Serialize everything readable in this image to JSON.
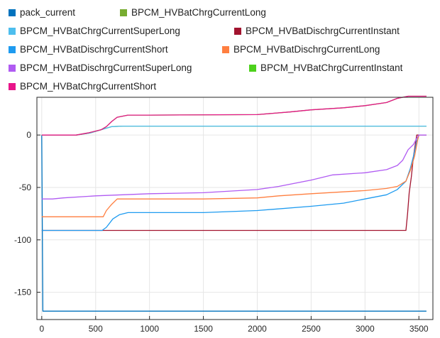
{
  "chart_data": {
    "type": "line",
    "title": "",
    "xlabel": "",
    "ylabel": "",
    "xlim": [
      -45,
      3630
    ],
    "ylim": [
      -176,
      36
    ],
    "grid": true,
    "legend_placement": "top",
    "x_ticks": [
      0,
      500,
      1000,
      1500,
      2000,
      2500,
      3000,
      3500
    ],
    "y_ticks": [
      0,
      -50,
      -100,
      -150
    ],
    "series": [
      {
        "name": "pack_current",
        "color": "#0072BD",
        "points": [
          [
            0,
            0
          ],
          [
            10,
            -168
          ],
          [
            3570,
            -168
          ]
        ]
      },
      {
        "name": "BPCM_HVBatChrgCurrentLong",
        "color": "#77AC30",
        "points": [
          [
            0,
            0
          ],
          [
            320,
            0
          ],
          [
            450,
            2
          ],
          [
            550,
            5
          ],
          [
            650,
            8
          ],
          [
            750,
            8.5
          ],
          [
            3570,
            8.5
          ]
        ]
      },
      {
        "name": "BPCM_HVBatChrgCurrentSuperLong",
        "color": "#4DBEEE",
        "points": [
          [
            0,
            0
          ],
          [
            320,
            0
          ],
          [
            450,
            2
          ],
          [
            550,
            5
          ],
          [
            650,
            8
          ],
          [
            750,
            8.5
          ],
          [
            3570,
            8.5
          ]
        ]
      },
      {
        "name": "BPCM_HVBatDischrgCurrentInstant",
        "color": "#A2142F",
        "points": [
          [
            0,
            -91
          ],
          [
            3380,
            -91
          ],
          [
            3395,
            -75
          ],
          [
            3410,
            -55
          ],
          [
            3430,
            -40
          ],
          [
            3450,
            -20
          ],
          [
            3480,
            0
          ],
          [
            3570,
            0
          ]
        ]
      },
      {
        "name": "BPCM_HVBatDischrgCurrentShort",
        "color": "#1E9BF0",
        "points": [
          [
            0,
            -91
          ],
          [
            560,
            -91
          ],
          [
            600,
            -88
          ],
          [
            660,
            -80
          ],
          [
            720,
            -76
          ],
          [
            800,
            -74
          ],
          [
            1000,
            -74
          ],
          [
            1500,
            -74
          ],
          [
            2000,
            -72
          ],
          [
            2500,
            -68
          ],
          [
            2800,
            -65
          ],
          [
            3000,
            -61
          ],
          [
            3200,
            -57
          ],
          [
            3300,
            -52
          ],
          [
            3380,
            -44
          ],
          [
            3420,
            -32
          ],
          [
            3450,
            -20
          ],
          [
            3480,
            -6
          ],
          [
            3500,
            0
          ],
          [
            3570,
            0
          ]
        ]
      },
      {
        "name": "BPCM_HVBatDischrgCurrentLong",
        "color": "#FF7F40",
        "points": [
          [
            0,
            -78
          ],
          [
            570,
            -78
          ],
          [
            600,
            -72
          ],
          [
            650,
            -66
          ],
          [
            700,
            -61
          ],
          [
            1000,
            -61
          ],
          [
            1500,
            -61
          ],
          [
            2000,
            -60
          ],
          [
            2200,
            -58
          ],
          [
            2500,
            -56
          ],
          [
            3000,
            -53
          ],
          [
            3200,
            -51
          ],
          [
            3300,
            -49
          ],
          [
            3380,
            -44
          ],
          [
            3420,
            -34
          ],
          [
            3460,
            -20
          ],
          [
            3490,
            -4
          ],
          [
            3500,
            0
          ],
          [
            3570,
            0
          ]
        ]
      },
      {
        "name": "BPCM_HVBatDischrgCurrentSuperLong",
        "color": "#B05BF2",
        "points": [
          [
            0,
            -61
          ],
          [
            100,
            -61
          ],
          [
            200,
            -60
          ],
          [
            500,
            -58
          ],
          [
            750,
            -57
          ],
          [
            1000,
            -56
          ],
          [
            1500,
            -55
          ],
          [
            2000,
            -52
          ],
          [
            2200,
            -49
          ],
          [
            2500,
            -43
          ],
          [
            2700,
            -38
          ],
          [
            3000,
            -36
          ],
          [
            3200,
            -33
          ],
          [
            3300,
            -29
          ],
          [
            3350,
            -24
          ],
          [
            3400,
            -14
          ],
          [
            3450,
            -9
          ],
          [
            3480,
            -3
          ],
          [
            3500,
            0
          ],
          [
            3570,
            0
          ]
        ]
      },
      {
        "name": "BPCM_HVBatChrgCurrentInstant",
        "color": "#4DD11C",
        "points": [
          [
            0,
            0
          ],
          [
            320,
            0
          ],
          [
            430,
            2
          ],
          [
            550,
            5
          ],
          [
            600,
            8
          ],
          [
            650,
            13
          ],
          [
            700,
            17
          ],
          [
            800,
            19
          ],
          [
            1000,
            19
          ],
          [
            2000,
            19.5
          ],
          [
            2300,
            22
          ],
          [
            2500,
            24
          ],
          [
            2800,
            26
          ],
          [
            3000,
            28
          ],
          [
            3200,
            31
          ],
          [
            3300,
            35
          ],
          [
            3400,
            37
          ],
          [
            3570,
            37
          ]
        ]
      },
      {
        "name": "BPCM_HVBatChrgCurrentShort",
        "color": "#E8158A",
        "points": [
          [
            0,
            0
          ],
          [
            320,
            0
          ],
          [
            430,
            2
          ],
          [
            550,
            5
          ],
          [
            600,
            8
          ],
          [
            650,
            13
          ],
          [
            700,
            17
          ],
          [
            800,
            19
          ],
          [
            1000,
            19
          ],
          [
            2000,
            19.5
          ],
          [
            2300,
            22
          ],
          [
            2500,
            24
          ],
          [
            2800,
            26
          ],
          [
            3000,
            28
          ],
          [
            3200,
            31
          ],
          [
            3300,
            35
          ],
          [
            3400,
            37
          ],
          [
            3570,
            37
          ]
        ]
      }
    ]
  }
}
